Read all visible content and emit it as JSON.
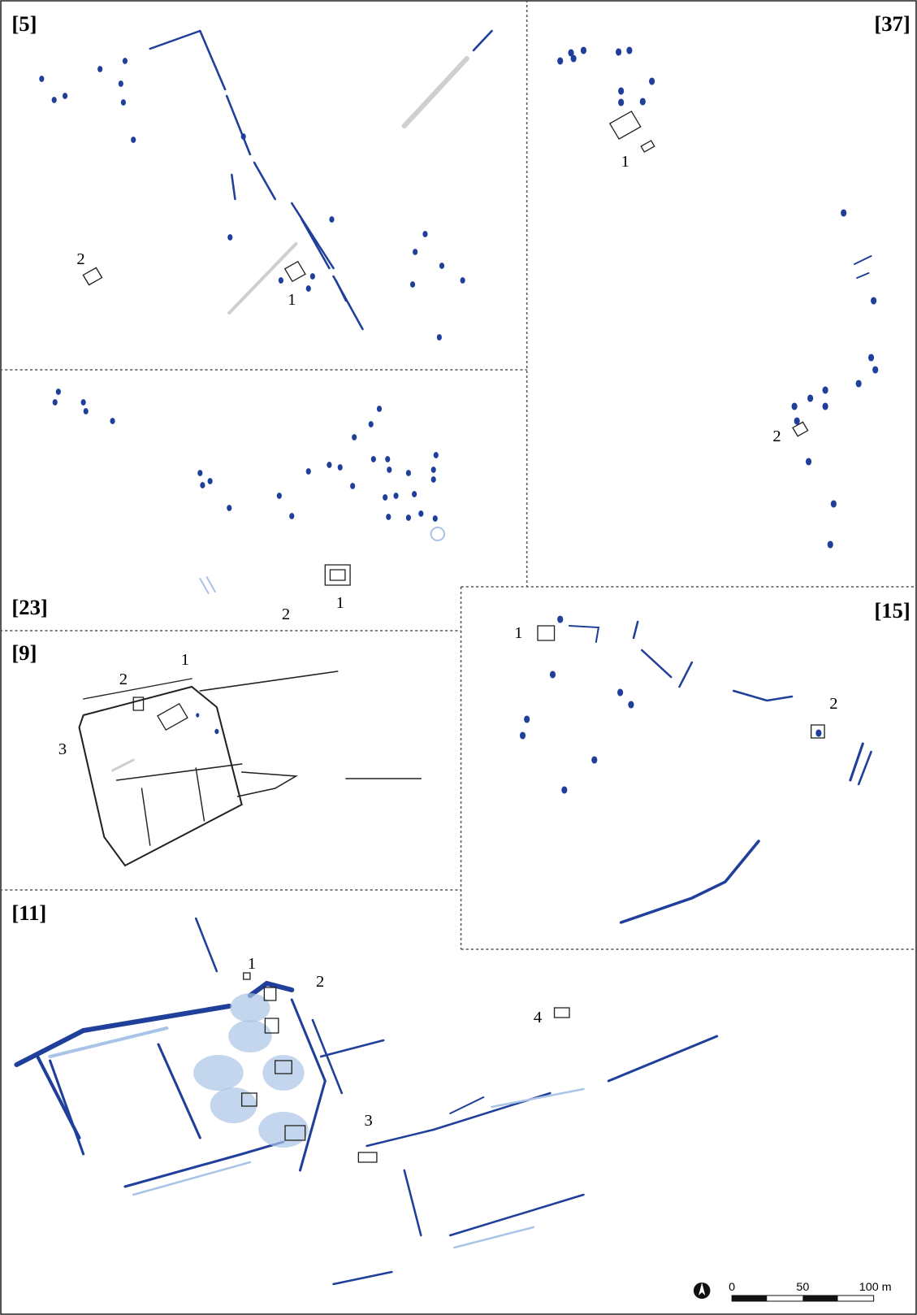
{
  "panels": [
    {
      "label": "[5]",
      "features": [
        "1",
        "2"
      ]
    },
    {
      "label": "[37]",
      "features": [
        "1",
        "2"
      ]
    },
    {
      "label": "[23]",
      "features": [
        "1",
        "2"
      ]
    },
    {
      "label": "[15]",
      "features": [
        "1",
        "2"
      ]
    },
    {
      "label": "[9]",
      "features": [
        "1",
        "2",
        "3"
      ]
    },
    {
      "label": "[11]",
      "features": [
        "1",
        "2",
        "3",
        "4"
      ]
    }
  ],
  "scale": {
    "ticks": [
      "0",
      "50",
      "100 m"
    ]
  }
}
